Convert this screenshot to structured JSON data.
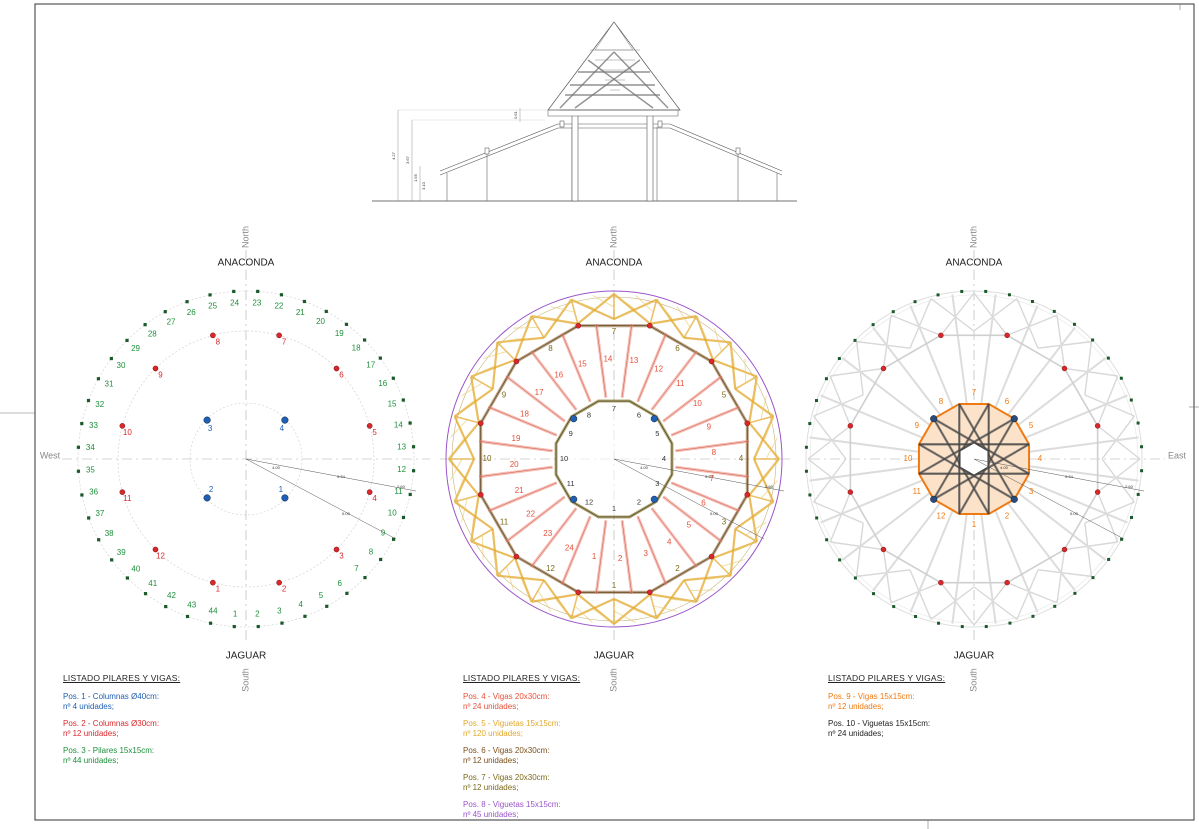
{
  "colors": {
    "blue": "#1f5fb5",
    "red": "#d9282c",
    "green": "#1d8f3a",
    "orange_red": "#e8503a",
    "yellow": "#e3a92b",
    "brown": "#7a4e18",
    "olive": "#7b6a19",
    "purple": "#9a55c9",
    "orange": "#f07a12",
    "dark": "#222222",
    "grey": "#888888"
  },
  "compass": {
    "north": "North",
    "south": "South",
    "west": "West",
    "east": "East",
    "top_name": "ANACONDA",
    "bottom_name": "JAGUAR"
  },
  "plan_left": {
    "blue_labels": [
      "1",
      "2",
      "3",
      "4"
    ],
    "red_labels": [
      "1",
      "2",
      "3",
      "4",
      "5",
      "6",
      "7",
      "8",
      "9",
      "10",
      "11",
      "12"
    ],
    "green_labels": [
      "1",
      "2",
      "3",
      "4",
      "5",
      "6",
      "7",
      "8",
      "9",
      "10",
      "11",
      "12",
      "13",
      "14",
      "15",
      "16",
      "17",
      "18",
      "19",
      "20",
      "21",
      "22",
      "23",
      "24",
      "25",
      "26",
      "27",
      "28",
      "29",
      "30",
      "31",
      "32",
      "33",
      "34",
      "35",
      "36",
      "37",
      "38",
      "39",
      "40",
      "41",
      "42",
      "43",
      "44"
    ],
    "dims": [
      "4.00",
      "5.34",
      "2.60",
      "6.00"
    ]
  },
  "plan_mid": {
    "ring_labels": [
      "1",
      "2",
      "3",
      "4",
      "5",
      "6",
      "7",
      "8",
      "9",
      "10",
      "11",
      "12"
    ],
    "spoke_labels": [
      "1",
      "2",
      "3",
      "4",
      "5",
      "6",
      "7",
      "8",
      "9",
      "10",
      "11",
      "12",
      "13",
      "14",
      "15",
      "16",
      "17",
      "18",
      "19",
      "20",
      "21",
      "22",
      "23",
      "24"
    ],
    "dims": [
      "4.00",
      "5.34",
      "2.60",
      "6.00"
    ]
  },
  "plan_right": {
    "inner_labels": [
      "1",
      "2",
      "3",
      "4",
      "5",
      "6",
      "7",
      "8",
      "9",
      "10",
      "11",
      "12"
    ],
    "dims": [
      "4.00",
      "5.34",
      "2.60",
      "6.00"
    ]
  },
  "section": {
    "dims": [
      "0.61",
      "4.27",
      "3.67",
      "1.55",
      "3.10"
    ]
  },
  "legend_left": {
    "title": "LISTADO PILARES Y VIGAS:",
    "items": [
      {
        "line1": "Pos. 1 - Columnas Ø40cm:",
        "line2": "nº 4 unidades;",
        "color": "#1f5fb5"
      },
      {
        "line1": "Pos. 2 - Columnas Ø30cm:",
        "line2": "nº 12 unidades;",
        "color": "#d9282c"
      },
      {
        "line1": "Pos. 3 - Pilares 15x15cm:",
        "line2": "nº 44 unidades;",
        "color": "#1d8f3a"
      }
    ]
  },
  "legend_mid": {
    "title": "LISTADO PILARES Y VIGAS:",
    "items": [
      {
        "line1": "Pos. 4 - Vigas 20x30cm:",
        "line2": "nº 24 unidades;",
        "color": "#e8503a"
      },
      {
        "line1": "Pos. 5 - Viguetas 15x15cm:",
        "line2": "nº 120 unidades;",
        "color": "#e3a92b"
      },
      {
        "line1": "Pos. 6 - Vigas 20x30cm:",
        "line2": "nº 12 unidades;",
        "color": "#7a4e18"
      },
      {
        "line1": "Pos. 7 - Vigas 20x30cm:",
        "line2": "nº 12 unidades;",
        "color": "#7b6a19"
      },
      {
        "line1": "Pos. 8 - Viguetas 15x15cm:",
        "line2": "nº 45 unidades;",
        "color": "#9a55c9"
      }
    ]
  },
  "legend_right": {
    "title": "LISTADO PILARES Y VIGAS:",
    "items": [
      {
        "line1": "Pos. 9 - Vigas 15x15cm:",
        "line2": "nº 12 unidades;",
        "color": "#f07a12"
      },
      {
        "line1": "Pos. 10 - Viguetas 15x15cm:",
        "line2": "nº 24 unidades;",
        "color": "#222222"
      }
    ]
  }
}
